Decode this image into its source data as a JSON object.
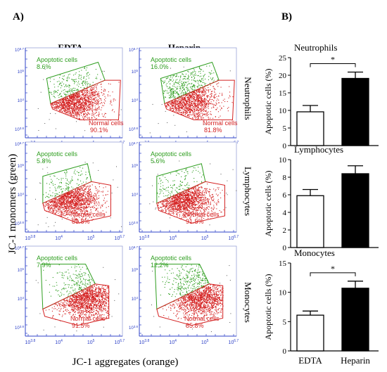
{
  "panel_a": {
    "label": "A)",
    "col_headers": [
      "EDTA",
      "Heparin"
    ],
    "row_labels": [
      "Neutrophils",
      "Lymphocytes",
      "Monocytes"
    ],
    "y_axis_label": "JC-1 monomers (green)",
    "x_axis_label": "JC-1 aggregates (orange)",
    "apoptotic_label": "Apoptotic cells",
    "normal_label": "Normal cells",
    "axis_ticks": [
      "10",
      "3.8",
      "10",
      "4",
      "10",
      "5",
      "10",
      "6.7"
    ],
    "colors": {
      "apoptotic": "#2e9e1f",
      "normal": "#d42020",
      "axis": "#2f43c8"
    }
  },
  "panel_b": {
    "label": "B)",
    "categories": [
      "EDTA",
      "Heparin"
    ],
    "ylabel": "Apoptotic cells (%)",
    "colors": {
      "EDTA": "#ffffff",
      "Heparin": "#000000"
    }
  },
  "chart_data": [
    {
      "type": "scatter",
      "cell": "Neutrophils",
      "group": "EDTA",
      "gates": [
        {
          "name": "Apoptotic cells",
          "percent": 8.6
        },
        {
          "name": "Normal cells",
          "percent": 90.1
        }
      ]
    },
    {
      "type": "scatter",
      "cell": "Neutrophils",
      "group": "Heparin",
      "gates": [
        {
          "name": "Apoptotic cells",
          "percent": 16.0
        },
        {
          "name": "Normal cells",
          "percent": 81.8
        }
      ]
    },
    {
      "type": "scatter",
      "cell": "Lymphocytes",
      "group": "EDTA",
      "gates": [
        {
          "name": "Apoptotic cells",
          "percent": 5.8
        },
        {
          "name": "Normal cells",
          "percent": 89.8
        }
      ]
    },
    {
      "type": "scatter",
      "cell": "Lymphocytes",
      "group": "Heparin",
      "gates": [
        {
          "name": "Apoptotic cells",
          "percent": 5.6
        },
        {
          "name": "Normal cells",
          "percent": 91.5
        }
      ]
    },
    {
      "type": "scatter",
      "cell": "Monocytes",
      "group": "EDTA",
      "gates": [
        {
          "name": "Apoptotic cells",
          "percent": 7.9
        },
        {
          "name": "Normal cells",
          "percent": 91.5
        }
      ]
    },
    {
      "type": "scatter",
      "cell": "Monocytes",
      "group": "Heparin",
      "gates": [
        {
          "name": "Apoptotic cells",
          "percent": 12.2
        },
        {
          "name": "Normal cells",
          "percent": 85.8
        }
      ]
    },
    {
      "type": "bar",
      "title": "Neutrophils",
      "categories": [
        "EDTA",
        "Heparin"
      ],
      "values": [
        9.6,
        19.1
      ],
      "errors": [
        1.8,
        1.8
      ],
      "ylabel": "Apoptotic cells (%)",
      "ylim": [
        0,
        25
      ],
      "yticks": [
        0,
        5,
        10,
        15,
        20,
        25
      ],
      "significance": "*"
    },
    {
      "type": "bar",
      "title": "Lymphocytes",
      "categories": [
        "EDTA",
        "Heparin"
      ],
      "values": [
        5.9,
        8.4
      ],
      "errors": [
        0.7,
        0.9
      ],
      "ylabel": "Apoptotic cells (%)",
      "ylim": [
        0,
        10
      ],
      "yticks": [
        0,
        2,
        4,
        6,
        8,
        10
      ],
      "significance": ""
    },
    {
      "type": "bar",
      "title": "Monocytes",
      "categories": [
        "EDTA",
        "Heparin"
      ],
      "values": [
        6.1,
        10.7
      ],
      "errors": [
        0.7,
        1.2
      ],
      "ylabel": "Apoptotic cells (%)",
      "ylim": [
        0,
        15
      ],
      "yticks": [
        0,
        5,
        10,
        15
      ],
      "significance": "*"
    }
  ]
}
